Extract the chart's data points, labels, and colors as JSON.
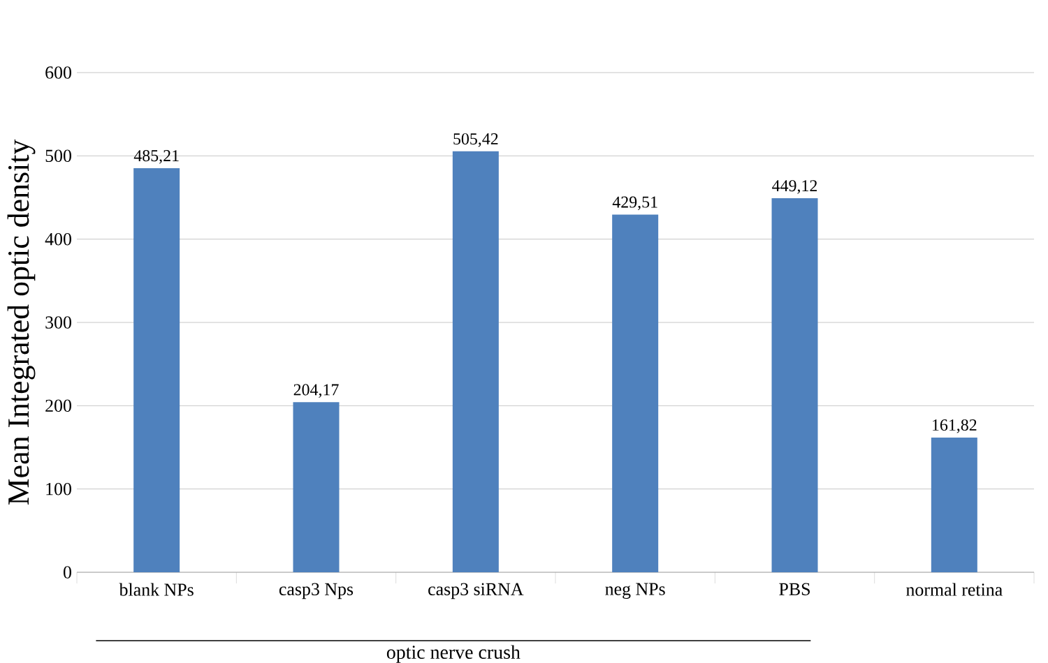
{
  "chart_data": {
    "type": "bar",
    "ylabel": "Mean Integrated optic density",
    "categories": [
      "blank NPs",
      "casp3 Nps",
      "casp3 siRNA",
      "neg NPs",
      "PBS",
      "normal retina"
    ],
    "values": [
      485.21,
      204.17,
      505.42,
      429.51,
      449.12,
      161.82
    ],
    "value_labels": [
      "485,21",
      "204,17",
      "505,42",
      "429,51",
      "449,12",
      "161,82"
    ],
    "color": "#4f81bd",
    "ylim": [
      0,
      600
    ],
    "yticks": [
      0,
      100,
      200,
      300,
      400,
      500,
      600
    ],
    "grid": "y",
    "annotations": [
      "optic nerve crush"
    ]
  }
}
